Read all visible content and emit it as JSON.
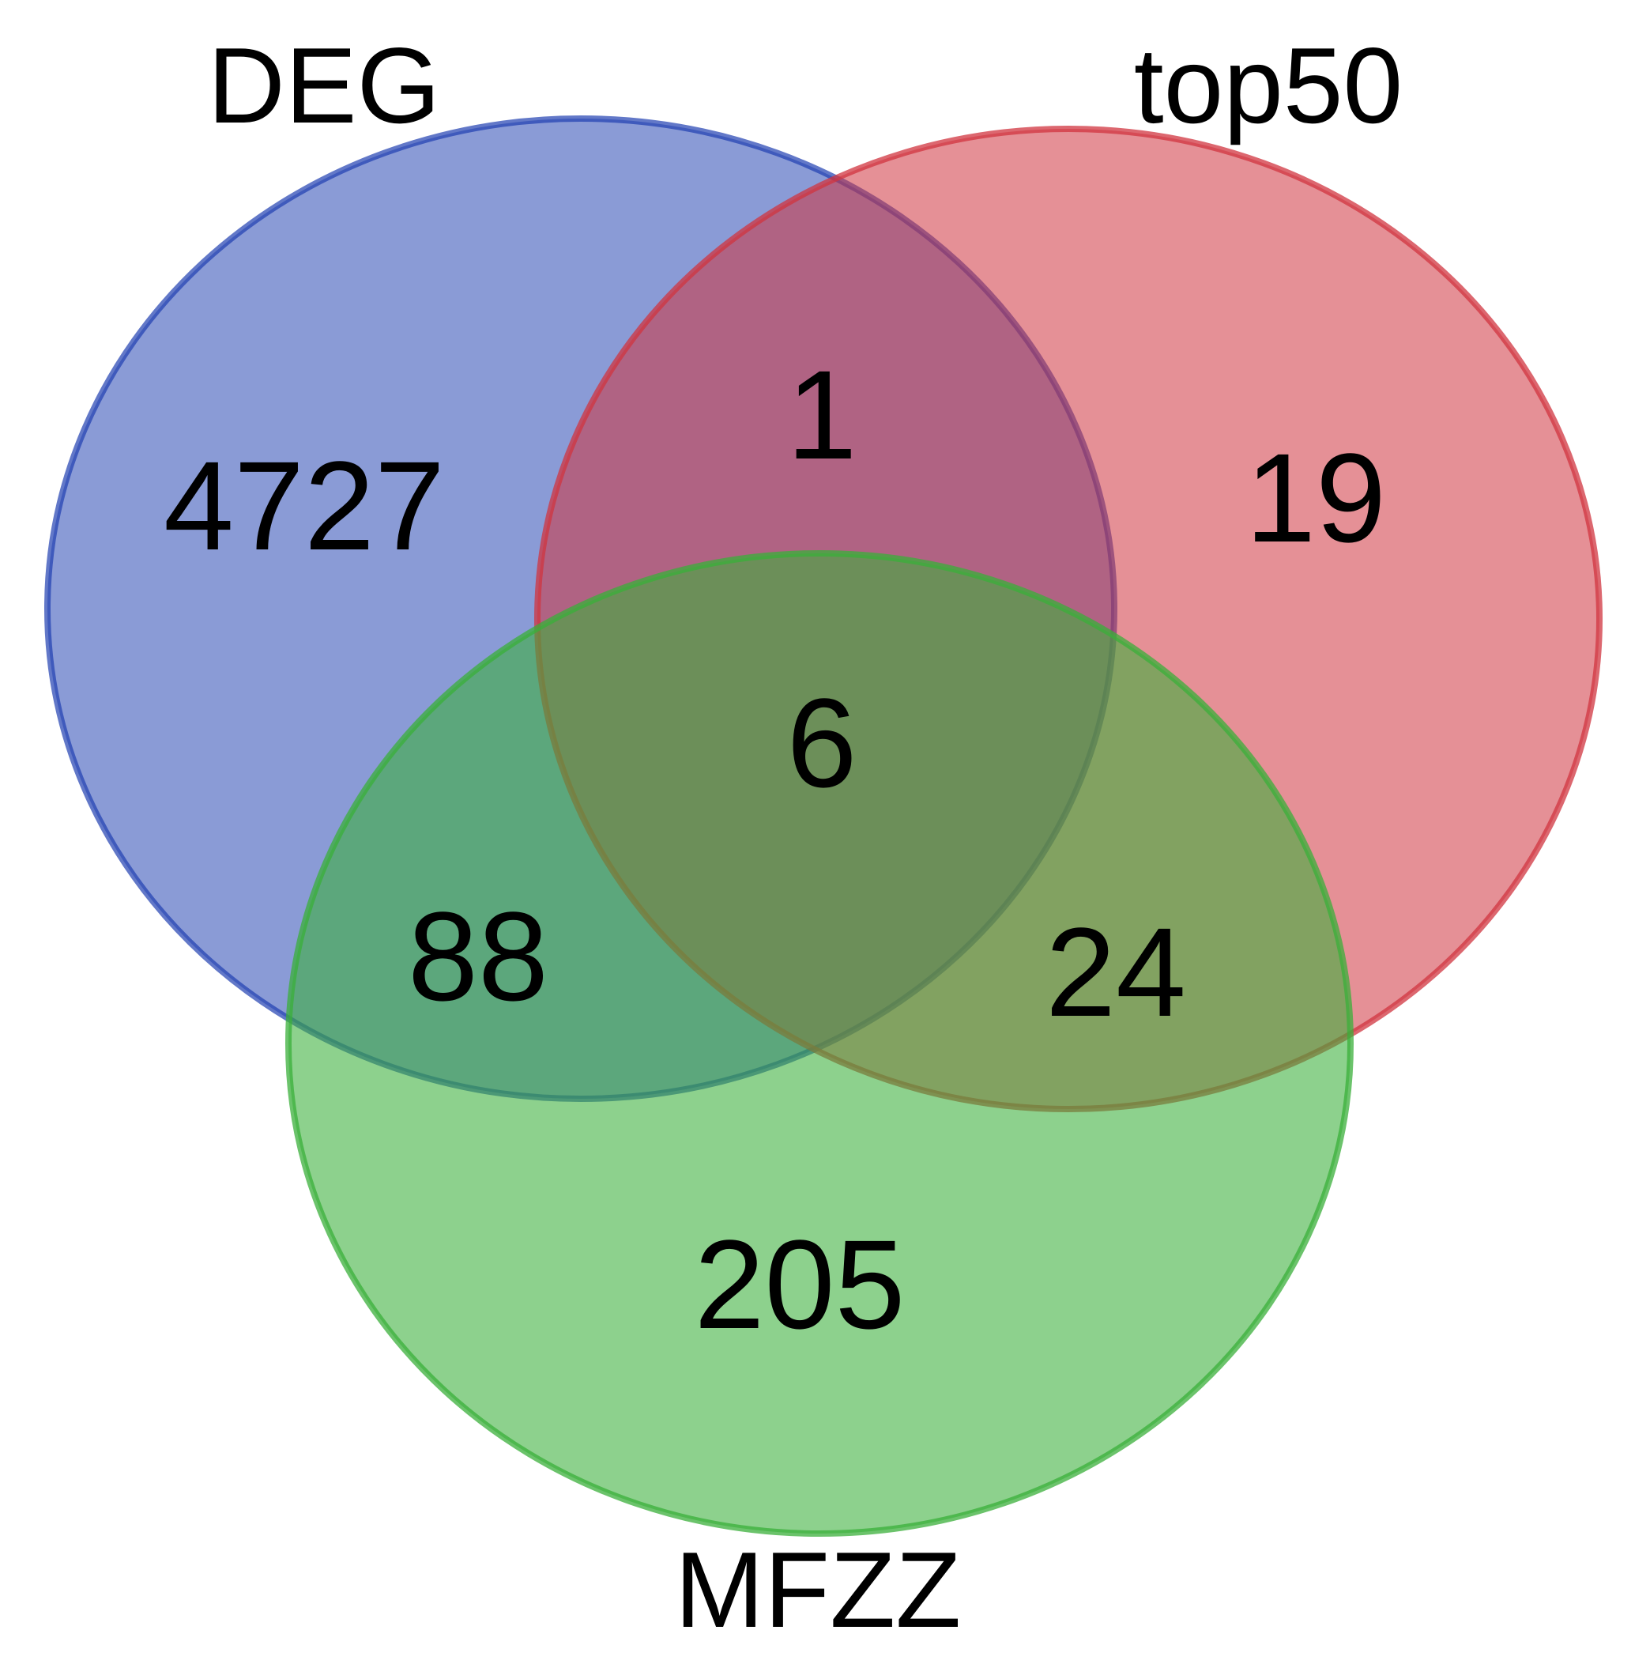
{
  "venn": {
    "sets": [
      {
        "key": "deg",
        "label": "DEG",
        "color": "#1f3fb0",
        "fill": "#1f3fb0"
      },
      {
        "key": "top50",
        "label": "top50",
        "color": "#d0343f",
        "fill": "#d0343f"
      },
      {
        "key": "mfzz",
        "label": "MFZZ",
        "color": "#3aaf3a",
        "fill": "#3aaf3a"
      }
    ],
    "regions": {
      "deg_only": "4727",
      "top50_only": "19",
      "mfzz_only": "205",
      "deg_top50": "1",
      "deg_mfzz": "88",
      "top50_mfzz": "24",
      "all_three": "6"
    }
  }
}
